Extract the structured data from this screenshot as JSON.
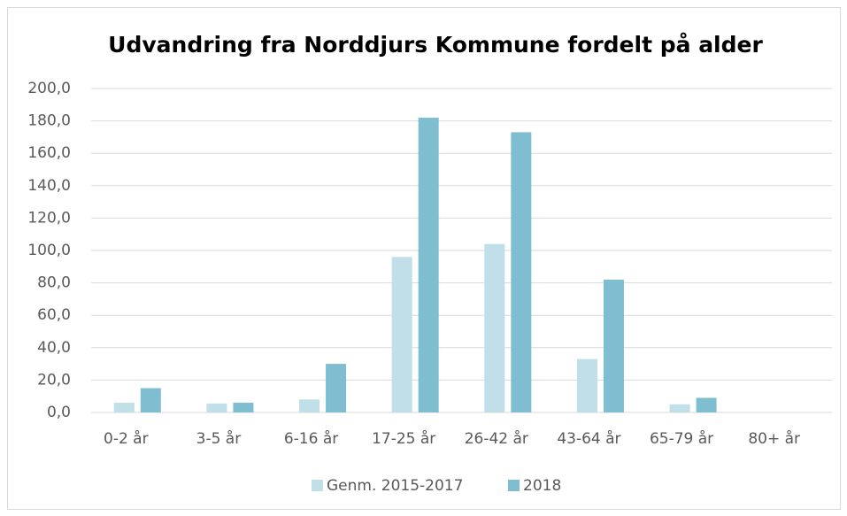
{
  "chart_data": {
    "type": "bar",
    "title": "Udvandring fra Norddjurs Kommune fordelt på alder",
    "categories": [
      "0-2 år",
      "3-5 år",
      "6-16 år",
      "17-25 år",
      "26-42 år",
      "43-64 år",
      "65-79 år",
      "80+ år"
    ],
    "series": [
      {
        "name": "Genm. 2015-2017",
        "color": "#c0dfe8",
        "values": [
          6,
          5.5,
          8,
          96,
          104,
          33,
          5,
          0
        ]
      },
      {
        "name": "2018",
        "color": "#7fbdd1",
        "values": [
          15,
          6,
          30,
          182,
          173,
          82,
          9,
          0
        ]
      }
    ],
    "ylim": [
      0,
      200
    ],
    "yticks": [
      {
        "value": 0,
        "label": "0,0"
      },
      {
        "value": 20,
        "label": "20,0"
      },
      {
        "value": 40,
        "label": "40,0"
      },
      {
        "value": 60,
        "label": "60,0"
      },
      {
        "value": 80,
        "label": "80,0"
      },
      {
        "value": 100,
        "label": "100,0"
      },
      {
        "value": 120,
        "label": "120,0"
      },
      {
        "value": 140,
        "label": "140,0"
      },
      {
        "value": 160,
        "label": "160,0"
      },
      {
        "value": 180,
        "label": "180,0"
      },
      {
        "value": 200,
        "label": "200,0"
      }
    ],
    "grid": true,
    "legend": "bottom"
  }
}
